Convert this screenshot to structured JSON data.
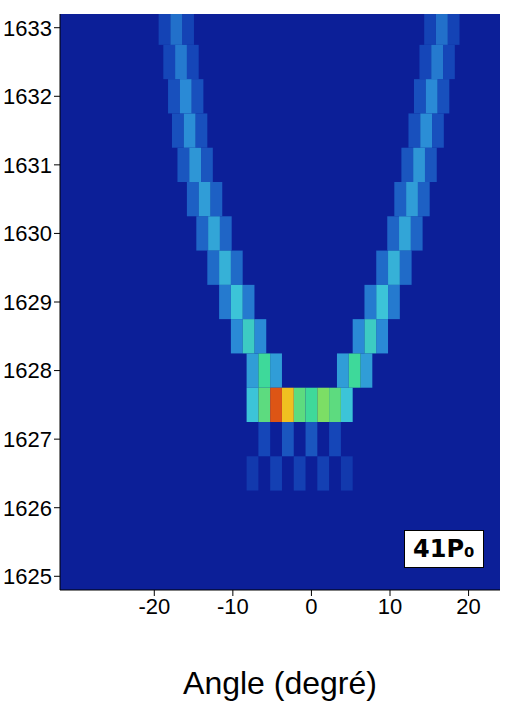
{
  "chart_data": {
    "type": "heatmap",
    "x_label": "Angle (degré)",
    "annotation": "41P₀",
    "xlim": [
      -32,
      24
    ],
    "xticks": [
      -20,
      -10,
      0,
      10,
      20
    ],
    "ylim": [
      1624.8,
      1633.2
    ],
    "yticks": [
      1625,
      1626,
      1627,
      1628,
      1629,
      1630,
      1631,
      1632,
      1633
    ],
    "zlim": [
      0,
      1
    ],
    "cell_size": [
      1.5,
      0.5
    ],
    "cells": [
      [
        -7.5,
        1626.5,
        0.08
      ],
      [
        -4.5,
        1626.5,
        0.1
      ],
      [
        -1.5,
        1626.5,
        0.1
      ],
      [
        1.5,
        1626.5,
        0.1
      ],
      [
        4.5,
        1626.5,
        0.08
      ],
      [
        -6,
        1627,
        0.12
      ],
      [
        -3,
        1627,
        0.15
      ],
      [
        0,
        1627,
        0.15
      ],
      [
        3,
        1627,
        0.12
      ],
      [
        -7.5,
        1628,
        0.3
      ],
      [
        -4.5,
        1628,
        0.3
      ],
      [
        4,
        1628,
        0.3
      ],
      [
        7,
        1628,
        0.3
      ],
      [
        -6,
        1628,
        0.55
      ],
      [
        5.5,
        1628,
        0.55
      ],
      [
        -9.5,
        1628.5,
        0.25
      ],
      [
        -6.5,
        1628.5,
        0.25
      ],
      [
        6,
        1628.5,
        0.25
      ],
      [
        9,
        1628.5,
        0.25
      ],
      [
        -8,
        1628.5,
        0.45
      ],
      [
        7.5,
        1628.5,
        0.45
      ],
      [
        -11,
        1629,
        0.22
      ],
      [
        -8,
        1629,
        0.22
      ],
      [
        7.5,
        1629,
        0.22
      ],
      [
        10.5,
        1629,
        0.22
      ],
      [
        -9.5,
        1629,
        0.4
      ],
      [
        9,
        1629,
        0.4
      ],
      [
        -12.5,
        1629.5,
        0.19
      ],
      [
        -9.5,
        1629.5,
        0.19
      ],
      [
        9,
        1629.5,
        0.19
      ],
      [
        12,
        1629.5,
        0.19
      ],
      [
        -11,
        1629.5,
        0.35
      ],
      [
        10.5,
        1629.5,
        0.35
      ],
      [
        -13.9,
        1630,
        0.18
      ],
      [
        -10.9,
        1630,
        0.18
      ],
      [
        10.4,
        1630,
        0.18
      ],
      [
        13.4,
        1630,
        0.18
      ],
      [
        -12.4,
        1630,
        0.32
      ],
      [
        11.9,
        1630,
        0.32
      ],
      [
        -15.1,
        1630.5,
        0.17
      ],
      [
        -12.1,
        1630.5,
        0.17
      ],
      [
        11.3,
        1630.5,
        0.17
      ],
      [
        14.3,
        1630.5,
        0.17
      ],
      [
        -13.6,
        1630.5,
        0.3
      ],
      [
        12.8,
        1630.5,
        0.3
      ],
      [
        -16.3,
        1631,
        0.15
      ],
      [
        -13.3,
        1631,
        0.15
      ],
      [
        12.2,
        1631,
        0.15
      ],
      [
        15.2,
        1631,
        0.15
      ],
      [
        -14.8,
        1631,
        0.28
      ],
      [
        13.7,
        1631,
        0.28
      ],
      [
        -17,
        1631.5,
        0.14
      ],
      [
        -14,
        1631.5,
        0.14
      ],
      [
        13.1,
        1631.5,
        0.14
      ],
      [
        16.1,
        1631.5,
        0.14
      ],
      [
        -15.5,
        1631.5,
        0.26
      ],
      [
        14.6,
        1631.5,
        0.26
      ],
      [
        -17.5,
        1632,
        0.14
      ],
      [
        -14.5,
        1632,
        0.14
      ],
      [
        13.8,
        1632,
        0.14
      ],
      [
        16.8,
        1632,
        0.14
      ],
      [
        -16,
        1632,
        0.25
      ],
      [
        15.3,
        1632,
        0.25
      ],
      [
        -18.1,
        1632.5,
        0.12
      ],
      [
        -15.1,
        1632.5,
        0.12
      ],
      [
        14.5,
        1632.5,
        0.12
      ],
      [
        17.5,
        1632.5,
        0.12
      ],
      [
        -16.6,
        1632.5,
        0.22
      ],
      [
        16,
        1632.5,
        0.22
      ],
      [
        -18.7,
        1633,
        0.11
      ],
      [
        -15.7,
        1633,
        0.11
      ],
      [
        15.1,
        1633,
        0.11
      ],
      [
        18.1,
        1633,
        0.11
      ],
      [
        -17.2,
        1633,
        0.2
      ],
      [
        16.6,
        1633,
        0.2
      ],
      [
        -7.5,
        1627.5,
        0.4
      ],
      [
        -6,
        1627.5,
        0.6
      ],
      [
        -4.5,
        1627.5,
        0.95
      ],
      [
        -3,
        1627.5,
        0.85
      ],
      [
        -1.5,
        1627.5,
        0.6
      ],
      [
        0,
        1627.5,
        0.55
      ],
      [
        1.5,
        1627.5,
        0.65
      ],
      [
        3,
        1627.5,
        0.6
      ],
      [
        4.5,
        1627.5,
        0.4
      ]
    ]
  }
}
